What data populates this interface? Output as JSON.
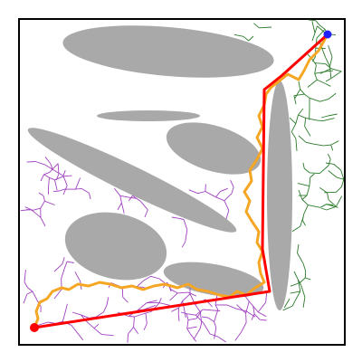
{
  "colors": {
    "border": "#000000",
    "background": "#ffffff",
    "obstacle": "#a9a9a9",
    "tree_start": "#a040c0",
    "tree_goal": "#2a7a2a",
    "initial_path": "#f5a623",
    "final_path": "#ff0000",
    "start_node": "#ff0000",
    "goal_node": "#2020ff"
  },
  "icons": {
    "start": "start-node-icon",
    "goal": "goal-node-icon"
  }
}
